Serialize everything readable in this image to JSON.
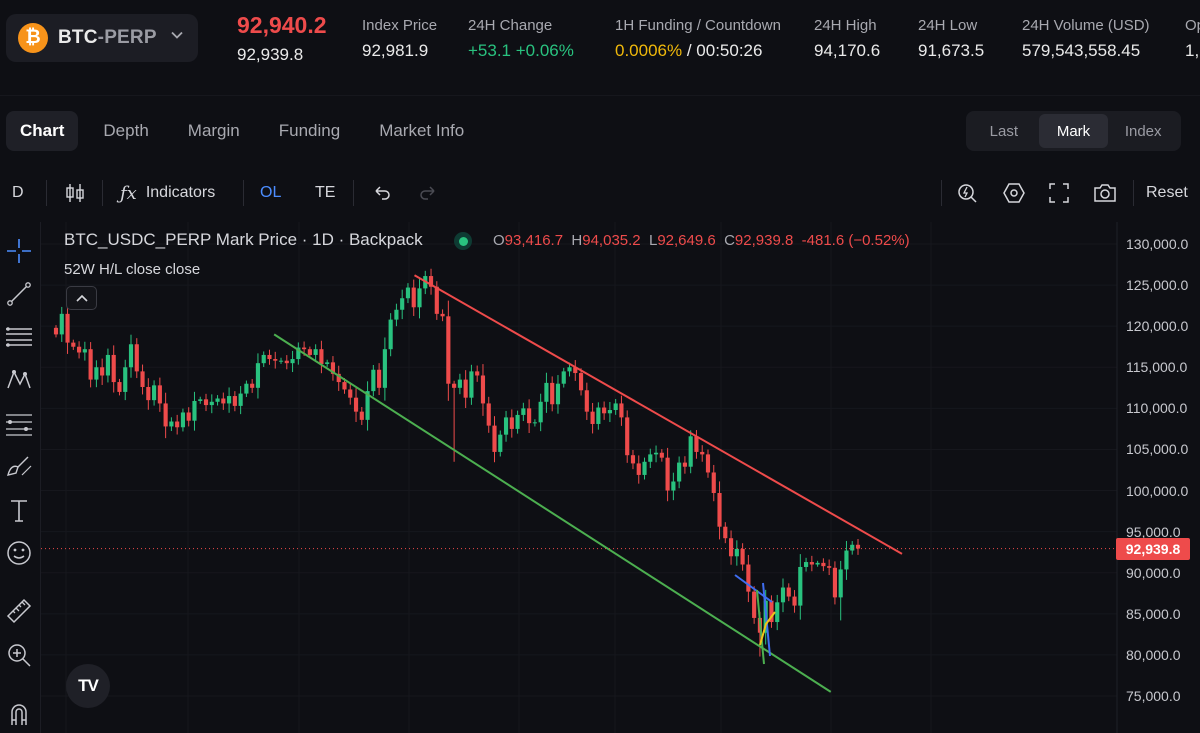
{
  "header": {
    "symbol_base": "BTC",
    "symbol_sep": "-",
    "symbol_quote": "PERP",
    "last_price": "92,940.2",
    "mark_price": "92,939.8",
    "stats": [
      {
        "label": "Index Price",
        "value": "92,981.9"
      },
      {
        "label": "24H Change",
        "value": "+53.1 +0.06%"
      },
      {
        "label": "1H Funding / Countdown",
        "value_funding": "0.0006%",
        "value_countdown": " / 00:50:26"
      },
      {
        "label": "24H High",
        "value": "94,170.6"
      },
      {
        "label": "24H Low",
        "value": "91,673.5"
      },
      {
        "label": "24H Volume (USD)",
        "value": "579,543,558.45"
      },
      {
        "label": "Op",
        "value": "1,"
      }
    ]
  },
  "tabs": [
    "Chart",
    "Depth",
    "Margin",
    "Funding",
    "Market Info"
  ],
  "price_source": {
    "options": [
      "Last",
      "Mark",
      "Index"
    ],
    "selected": "Mark"
  },
  "toolbar": {
    "interval": "D",
    "indicators_label": "Indicators",
    "ol_label": "OL",
    "te_label": "TE",
    "reset_label": "Reset"
  },
  "legend": {
    "title": "BTC_USDC_PERP Mark Price · 1D · Backpack",
    "o_key": "O",
    "o_val": "93,416.7",
    "h_key": "H",
    "h_val": "94,035.2",
    "l_key": "L",
    "l_val": "92,649.6",
    "c_key": "C",
    "c_val": "92,939.8",
    "change": "-481.6 (−0.52%)",
    "sub": "52W H/L close close"
  },
  "price_axis": {
    "labels": [
      "130,000.0",
      "125,000.0",
      "120,000.0",
      "115,000.0",
      "110,000.0",
      "105,000.0",
      "100,000.0",
      "95,000.0",
      "90,000.0",
      "85,000.0",
      "80,000.0",
      "75,000.0"
    ],
    "current": "92,939.8"
  },
  "chart_data": {
    "type": "candlestick",
    "symbol": "BTC_USDC_PERP",
    "interval": "1D",
    "ylim": [
      74000,
      132000
    ],
    "current_price": 92939.8,
    "colors": {
      "up": "#29c27f",
      "down": "#ee4b4b",
      "resistance": "#ee4b4b",
      "support": "#4caf50"
    },
    "closes": [
      119000,
      121500,
      118000,
      117500,
      116800,
      117200,
      113500,
      115000,
      114000,
      116500,
      113200,
      112000,
      115000,
      117800,
      114500,
      112600,
      111000,
      112800,
      110600,
      107800,
      108400,
      107700,
      109500,
      108500,
      110900,
      111100,
      110400,
      110800,
      111200,
      110600,
      111500,
      110300,
      111800,
      113000,
      112500,
      115500,
      116500,
      116000,
      115800,
      115800,
      115500,
      116000,
      117400,
      117200,
      116500,
      117200,
      115400,
      115600,
      114200,
      113200,
      112300,
      111300,
      109600,
      108600,
      112100,
      114700,
      112500,
      117200,
      120800,
      122000,
      123400,
      124700,
      122300,
      124600,
      126100,
      124800,
      121500,
      121200,
      113000,
      112500,
      113500,
      111300,
      114500,
      114000,
      110600,
      107900,
      104700,
      106800,
      108900,
      107500,
      109200,
      110000,
      108200,
      108300,
      110800,
      113100,
      110500,
      113000,
      114500,
      115000,
      114300,
      112200,
      109600,
      108100,
      110100,
      109400,
      109800,
      110600,
      108900,
      104300,
      103300,
      101900,
      103500,
      104400,
      104600,
      104000,
      100000,
      101100,
      103400,
      102900,
      106600,
      104700,
      104400,
      102200,
      99700,
      95600,
      94200,
      92000,
      92900,
      91000,
      87700,
      84500,
      82700,
      86600,
      84000,
      86400,
      88200,
      87100,
      86000,
      90700,
      91300,
      91000,
      91200,
      90800,
      90600,
      87000,
      90400,
      92700,
      93400,
      92940
    ],
    "annotations": [
      {
        "type": "trendline",
        "label": "resistance",
        "from": {
          "x": 0.447,
          "y": 126200
        },
        "to": {
          "x": 1.0,
          "y": 92300
        }
      },
      {
        "type": "trendline",
        "label": "support",
        "from": {
          "x": 0.272,
          "y": 119000
        },
        "to": {
          "x": 0.966,
          "y": 75500
        }
      }
    ]
  }
}
